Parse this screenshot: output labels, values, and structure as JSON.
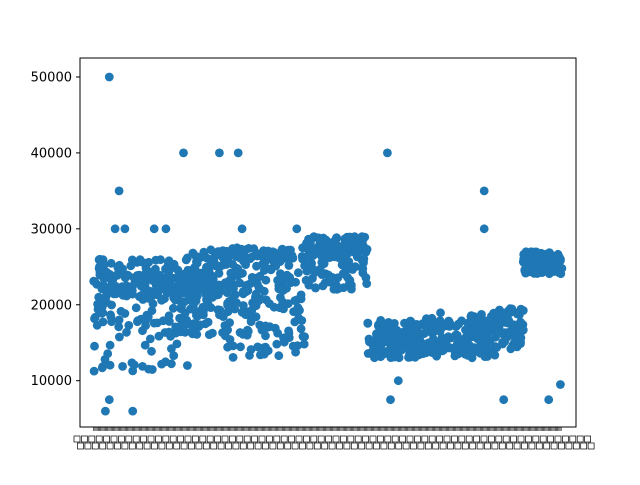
{
  "chart_data": {
    "type": "scatter",
    "title": "",
    "xlabel": "",
    "ylabel": "",
    "grid": false,
    "legend": "none",
    "color": "#1f77b4",
    "ylim": [
      3900,
      52500
    ],
    "xlim": [
      -35,
      1235
    ],
    "yticks": [
      10000,
      20000,
      30000,
      40000,
      50000
    ],
    "ytick_labels": [
      "10000",
      "20000",
      "30000",
      "40000",
      "50000"
    ],
    "xtick_note": "categorical x-axis; ~1200 overlapping category labels rendered illegibly",
    "x": [],
    "y": []
  }
}
